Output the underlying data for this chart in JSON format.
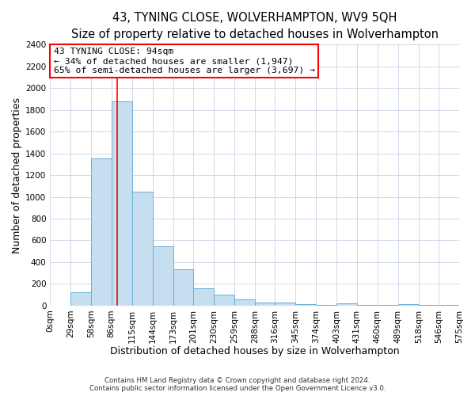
{
  "title": "43, TYNING CLOSE, WOLVERHAMPTON, WV9 5QH",
  "subtitle": "Size of property relative to detached houses in Wolverhampton",
  "xlabel": "Distribution of detached houses by size in Wolverhampton",
  "ylabel": "Number of detached properties",
  "bin_labels": [
    "0sqm",
    "29sqm",
    "58sqm",
    "86sqm",
    "115sqm",
    "144sqm",
    "173sqm",
    "201sqm",
    "230sqm",
    "259sqm",
    "288sqm",
    "316sqm",
    "345sqm",
    "374sqm",
    "403sqm",
    "431sqm",
    "460sqm",
    "489sqm",
    "518sqm",
    "546sqm",
    "575sqm"
  ],
  "bin_edges": [
    0,
    29,
    58,
    86,
    115,
    144,
    173,
    201,
    230,
    259,
    288,
    316,
    345,
    374,
    403,
    431,
    460,
    489,
    518,
    546,
    575
  ],
  "bar_heights": [
    0,
    125,
    1350,
    1880,
    1050,
    545,
    335,
    160,
    100,
    60,
    30,
    25,
    10,
    5,
    20,
    5,
    5,
    15,
    5,
    5,
    15
  ],
  "bar_color": "#c5dff0",
  "bar_edge_color": "#6aaed6",
  "vline_x": 94,
  "vline_color": "red",
  "annotation_title": "43 TYNING CLOSE: 94sqm",
  "annotation_line1": "← 34% of detached houses are smaller (1,947)",
  "annotation_line2": "65% of semi-detached houses are larger (3,697) →",
  "annotation_box_color": "white",
  "annotation_box_edge": "red",
  "ylim": [
    0,
    2400
  ],
  "yticks": [
    0,
    200,
    400,
    600,
    800,
    1000,
    1200,
    1400,
    1600,
    1800,
    2000,
    2200,
    2400
  ],
  "footer1": "Contains HM Land Registry data © Crown copyright and database right 2024.",
  "footer2": "Contains public sector information licensed under the Open Government Licence v3.0.",
  "title_fontsize": 10.5,
  "subtitle_fontsize": 9.5,
  "axis_label_fontsize": 9,
  "tick_fontsize": 7.5,
  "background_color": "#ffffff",
  "plot_background": "#ffffff",
  "grid_color": "#d0d8e8"
}
